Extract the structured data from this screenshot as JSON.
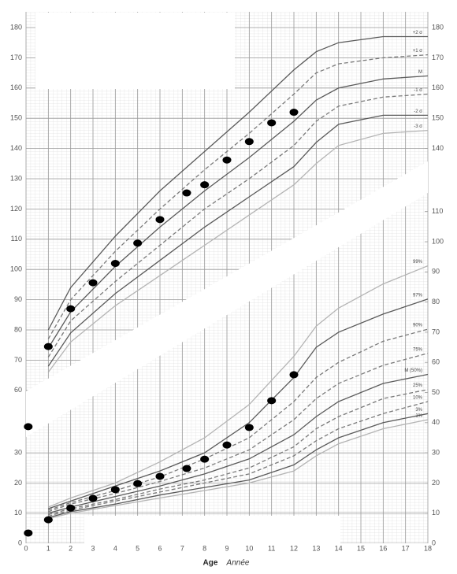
{
  "chart_data": [
    {
      "type": "line",
      "xlim": [
        0,
        18
      ],
      "ylim": [
        45,
        185
      ],
      "yticks": [
        60,
        70,
        80,
        90,
        100,
        110,
        120,
        130,
        140,
        150,
        160,
        170,
        180
      ],
      "y2lim": [
        45,
        185
      ],
      "y2ticks": [
        140,
        150,
        160,
        170,
        180
      ],
      "grid": true,
      "x": [
        1,
        2,
        4,
        6,
        8,
        10,
        12,
        13,
        14,
        16,
        18
      ],
      "series": [
        {
          "name": "+2 σ",
          "color": "#5a5a5a",
          "dashed": false,
          "values": [
            80,
            94,
            111,
            126,
            139,
            152,
            166,
            172,
            175,
            177,
            177
          ]
        },
        {
          "name": "+1 σ",
          "color": "#7a7a7a",
          "dashed": true,
          "values": [
            77,
            90,
            106,
            120,
            133,
            145,
            158,
            165,
            168,
            170,
            171
          ]
        },
        {
          "name": "M",
          "color": "#5a5a5a",
          "dashed": false,
          "values": [
            74,
            86,
            101,
            114,
            126,
            137,
            149,
            156,
            160,
            163,
            164
          ]
        },
        {
          "name": "-1 σ",
          "color": "#7a7a7a",
          "dashed": true,
          "values": [
            71,
            83,
            96,
            108,
            120,
            130,
            141,
            149,
            154,
            157,
            158
          ]
        },
        {
          "name": "-2 σ",
          "color": "#5a5a5a",
          "dashed": false,
          "values": [
            68,
            79,
            92,
            103,
            114,
            124,
            134,
            142,
            148,
            151,
            151
          ]
        },
        {
          "name": "-3 σ",
          "color": "#b4b4b4",
          "dashed": false,
          "values": [
            66,
            76,
            88,
            98,
            108,
            118,
            128,
            135,
            141,
            145,
            146
          ]
        }
      ],
      "measurements": {
        "color": "#000000",
        "x": [
          0.1,
          1,
          2,
          3,
          4,
          5,
          6,
          7.2,
          8,
          9,
          10,
          11,
          12
        ],
        "values": [
          48,
          74.5,
          87,
          95.6,
          102,
          108.7,
          116.5,
          125.3,
          128,
          136.2,
          142.3,
          148.5,
          152
        ]
      }
    },
    {
      "type": "line",
      "xlim": [
        0,
        18
      ],
      "xticks": [
        0,
        1,
        2,
        3,
        4,
        5,
        6,
        7,
        8,
        9,
        10,
        11,
        12,
        13,
        14,
        15,
        16,
        17,
        18
      ],
      "xlabel": "Age",
      "xlabel_alt": "Année",
      "ylim": [
        0,
        120
      ],
      "yticks": [
        0,
        10,
        20,
        30
      ],
      "y2lim": [
        0,
        120
      ],
      "y2ticks": [
        0,
        10,
        20,
        30,
        40,
        50,
        60,
        70,
        80,
        90,
        100,
        110
      ],
      "grid": true,
      "x": [
        1,
        2,
        4,
        6,
        8,
        10,
        12,
        13,
        14,
        16,
        18
      ],
      "series": [
        {
          "name": "99%",
          "color": "#b4b4b4",
          "dashed": false,
          "values": [
            12,
            15,
            20,
            27,
            35,
            46,
            62,
            72,
            78,
            86,
            92
          ]
        },
        {
          "name": "97%",
          "color": "#5a5a5a",
          "dashed": false,
          "values": [
            11.5,
            14,
            19,
            24,
            30,
            40,
            55,
            65,
            70,
            76,
            81
          ]
        },
        {
          "name": "90%",
          "color": "#7a7a7a",
          "dashed": true,
          "values": [
            11,
            13.5,
            17.5,
            22,
            28,
            35,
            47,
            55,
            60,
            67,
            71
          ]
        },
        {
          "name": "75%",
          "color": "#7a7a7a",
          "dashed": true,
          "values": [
            10.5,
            13,
            16.5,
            20.5,
            25,
            31,
            41,
            48,
            53,
            59,
            63
          ]
        },
        {
          "name": "M (50%)",
          "color": "#5a5a5a",
          "dashed": false,
          "values": [
            10,
            12,
            15.5,
            19,
            23,
            28,
            36,
            42,
            47,
            53,
            56
          ]
        },
        {
          "name": "25%",
          "color": "#7a7a7a",
          "dashed": true,
          "values": [
            9.5,
            11.5,
            14.5,
            18,
            21,
            25,
            32,
            38,
            42,
            48,
            51
          ]
        },
        {
          "name": "10%",
          "color": "#7a7a7a",
          "dashed": true,
          "values": [
            9,
            11,
            14,
            17,
            20,
            23,
            29,
            34,
            38,
            43,
            47
          ]
        },
        {
          "name": "3%",
          "color": "#5a5a5a",
          "dashed": false,
          "values": [
            8.5,
            10.5,
            13,
            16,
            18.5,
            21,
            26,
            31,
            35,
            40,
            43
          ]
        },
        {
          "name": "1%",
          "color": "#b4b4b4",
          "dashed": false,
          "values": [
            8.2,
            10,
            12.5,
            15,
            17.5,
            20,
            24,
            29,
            33,
            38,
            41
          ]
        }
      ],
      "measurements": {
        "color": "#000000",
        "x": [
          0.1,
          1,
          2,
          3,
          4,
          5,
          6,
          7.2,
          8,
          9,
          10,
          11,
          12
        ],
        "values": [
          3.4,
          7.8,
          11.7,
          14.9,
          17.8,
          19.8,
          22.2,
          24.8,
          27.9,
          32.6,
          38.4,
          47.3,
          55.9
        ]
      }
    }
  ]
}
